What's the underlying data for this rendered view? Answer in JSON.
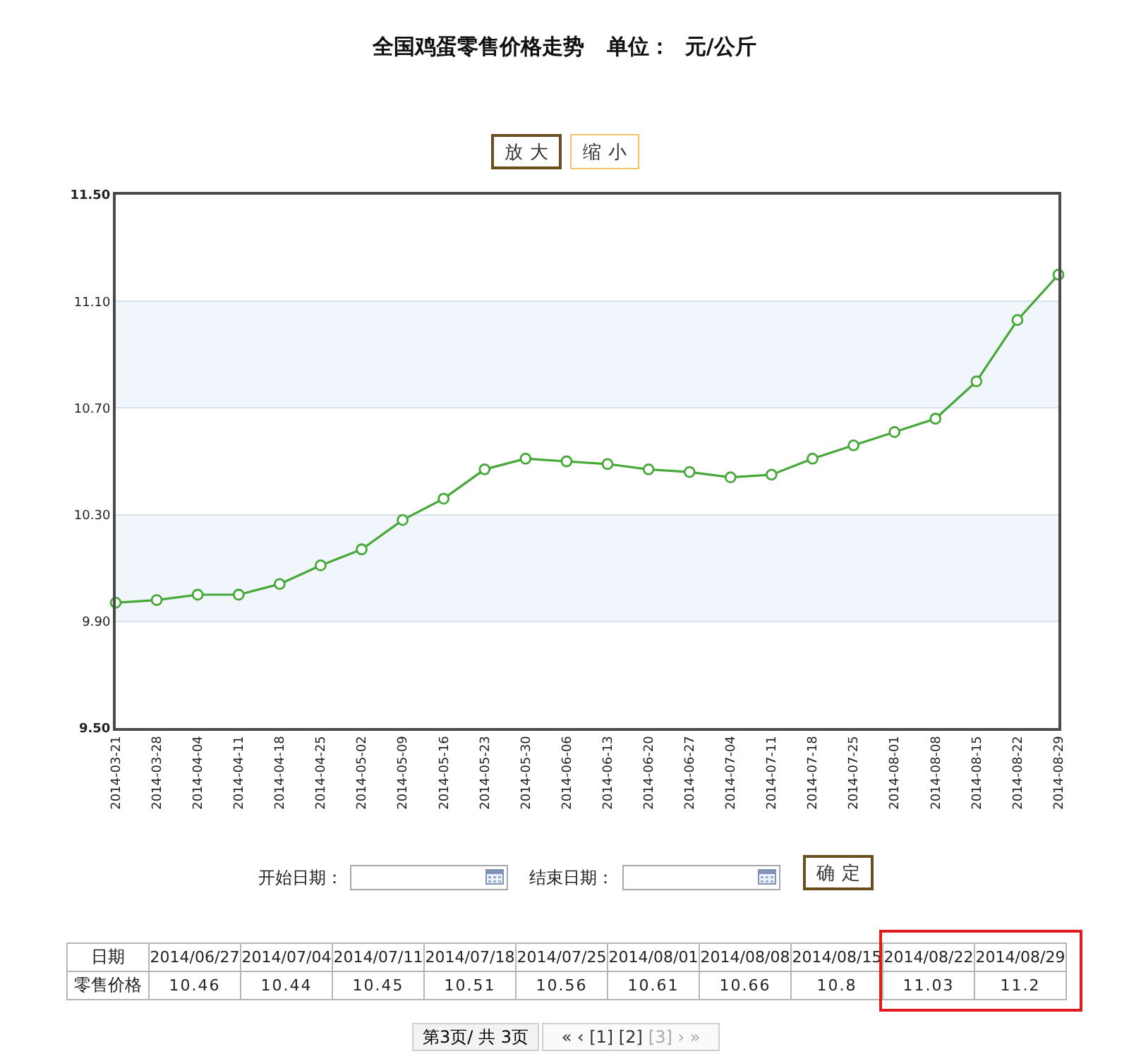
{
  "chart_data": [
    {
      "type": "line",
      "title": "全国鸡蛋零售价格走势   单位：  元/公斤",
      "categories": [
        "2014-03-21",
        "2014-03-28",
        "2014-04-04",
        "2014-04-11",
        "2014-04-18",
        "2014-04-25",
        "2014-05-02",
        "2014-05-09",
        "2014-05-16",
        "2014-05-23",
        "2014-05-30",
        "2014-06-06",
        "2014-06-13",
        "2014-06-20",
        "2014-06-27",
        "2014-07-04",
        "2014-07-11",
        "2014-07-18",
        "2014-07-25",
        "2014-08-01",
        "2014-08-08",
        "2014-08-15",
        "2014-08-22",
        "2014-08-29"
      ],
      "values": [
        9.97,
        9.98,
        10.0,
        10.0,
        10.04,
        10.11,
        10.17,
        10.28,
        10.36,
        10.47,
        10.51,
        10.5,
        10.49,
        10.47,
        10.46,
        10.44,
        10.45,
        10.51,
        10.56,
        10.61,
        10.66,
        10.8,
        11.03,
        11.2
      ],
      "color": "#47a83a",
      "marker": "circle",
      "line_style": "solid",
      "ylim": [
        9.5,
        11.5
      ],
      "yticks": [
        {
          "value": 9.5,
          "label": "9.50"
        },
        {
          "value": 9.9,
          "label": "9.90"
        },
        {
          "value": 10.3,
          "label": "10.30"
        },
        {
          "value": 10.7,
          "label": "10.70"
        },
        {
          "value": 11.1,
          "label": "11.10"
        },
        {
          "value": 11.5,
          "label": "11.50"
        }
      ],
      "grid": "y",
      "bands": [
        {
          "axis": "y",
          "from": 9.9,
          "to": 10.3,
          "color": "#f1f6fc"
        },
        {
          "axis": "y",
          "from": 10.7,
          "to": 11.1,
          "color": "#f1f6fc"
        }
      ],
      "annotations": [
        "放大",
        "缩小",
        "开始日期：",
        "结束日期：",
        "确定"
      ]
    },
    {
      "type": "other",
      "xlabel": "日期",
      "ylabel": "零售价格",
      "categories": [
        "2014/06/27",
        "2014/07/04",
        "2014/07/11",
        "2014/07/18",
        "2014/07/25",
        "2014/08/01",
        "2014/08/08",
        "2014/08/15",
        "2014/08/22",
        "2014/08/29"
      ],
      "values": [
        10.46,
        10.44,
        10.45,
        10.51,
        10.56,
        10.61,
        10.66,
        10.8,
        11.03,
        11.2
      ],
      "data_labels": true,
      "annotations": [
        "第3页/ 共 3页",
        "« ‹ [1] [2]",
        "[3] › »"
      ]
    }
  ]
}
